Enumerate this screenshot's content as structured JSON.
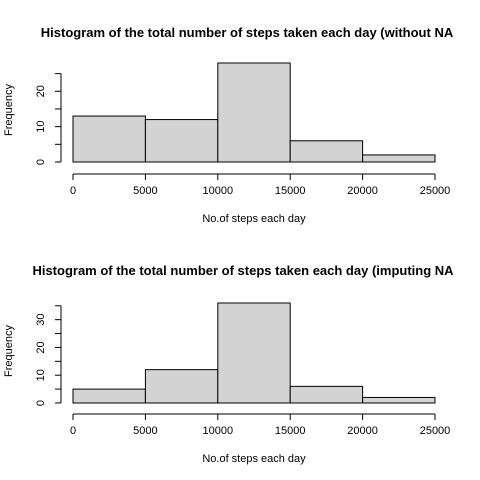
{
  "chart_data": [
    {
      "type": "bar",
      "subtype": "histogram",
      "title": "Histogram of the total number of steps taken each day (without NA",
      "xlabel": "No.of steps each day",
      "ylabel": "Frequency",
      "bins": [
        [
          0,
          5000
        ],
        [
          5000,
          10000
        ],
        [
          10000,
          15000
        ],
        [
          15000,
          20000
        ],
        [
          20000,
          25000
        ]
      ],
      "values": [
        13,
        12,
        28,
        6,
        2
      ],
      "xlim": [
        0,
        25000
      ],
      "ylim": [
        0,
        28
      ],
      "x_ticks": [
        0,
        5000,
        10000,
        15000,
        20000,
        25000
      ],
      "y_ticks": [
        0,
        10,
        20
      ],
      "bar_color": "#d3d3d3",
      "grid": false
    },
    {
      "type": "bar",
      "subtype": "histogram",
      "title": "Histogram of the total number of steps taken each day (imputing NA",
      "xlabel": "No.of steps each day",
      "ylabel": "Frequency",
      "bins": [
        [
          0,
          5000
        ],
        [
          5000,
          10000
        ],
        [
          10000,
          15000
        ],
        [
          15000,
          20000
        ],
        [
          20000,
          25000
        ]
      ],
      "values": [
        5,
        12,
        36,
        6,
        2
      ],
      "xlim": [
        0,
        25000
      ],
      "ylim": [
        0,
        36
      ],
      "x_ticks": [
        0,
        5000,
        10000,
        15000,
        20000,
        25000
      ],
      "y_ticks": [
        0,
        10,
        20,
        30
      ],
      "bar_color": "#d3d3d3",
      "grid": false
    }
  ]
}
